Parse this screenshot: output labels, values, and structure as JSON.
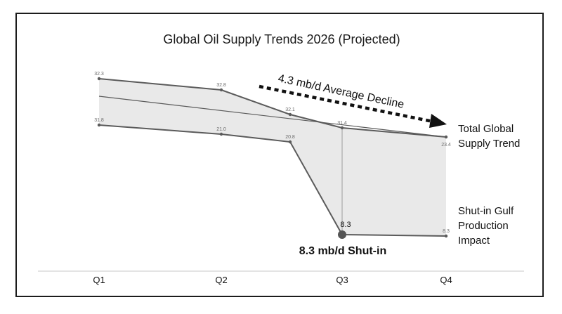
{
  "chart_data": {
    "type": "area",
    "title": "Global Oil Supply Trends 2026 (Projected)",
    "categories": [
      "Q1",
      "Q2",
      "Q3",
      "Q4"
    ],
    "series": [
      {
        "points": [
          {
            "x": "Q1",
            "value": 32.3,
            "label": "32.3"
          },
          {
            "x": "Q2",
            "value": 32.8,
            "label": "32.8"
          },
          {
            "x": "Q2.55",
            "value": 32.1,
            "label": "32.1"
          },
          {
            "x": "Q3",
            "value": 31.4,
            "label": "31.4"
          },
          {
            "x": "Q4",
            "value": 23.4,
            "label": "23.4"
          }
        ]
      },
      {
        "points": [
          {
            "x": "Q1",
            "value": 31.8,
            "label": "31.8"
          },
          {
            "x": "Q2",
            "value": 21.0,
            "label": "21.0"
          },
          {
            "x": "Q2.55",
            "value": 20.8,
            "label": "20.8"
          },
          {
            "x": "Q3",
            "value": 8.3,
            "label": "8.3"
          },
          {
            "x": "Q4",
            "value": 8.3,
            "label": "8.3"
          }
        ]
      }
    ],
    "trend_line": {
      "from_q": "Q1",
      "to_q": "Q4"
    },
    "annotations": {
      "decline": "4.3 mb/d Average Decline",
      "total_label_line1": "Total Global",
      "total_label_line2": "Supply Trend",
      "shutin_label_line1": "Shut-in Gulf",
      "shutin_label_line2": "Production",
      "shutin_label_line3": "Impact",
      "shutin_callout": "8.3 mb/d Shut-in",
      "marker_label": "8.3"
    },
    "colors": {
      "line": "#5b5b5b",
      "fill": "#e9e9e9",
      "text": "#111111",
      "minor_text": "#6a6a6a"
    },
    "grid": false,
    "legend": "none"
  }
}
